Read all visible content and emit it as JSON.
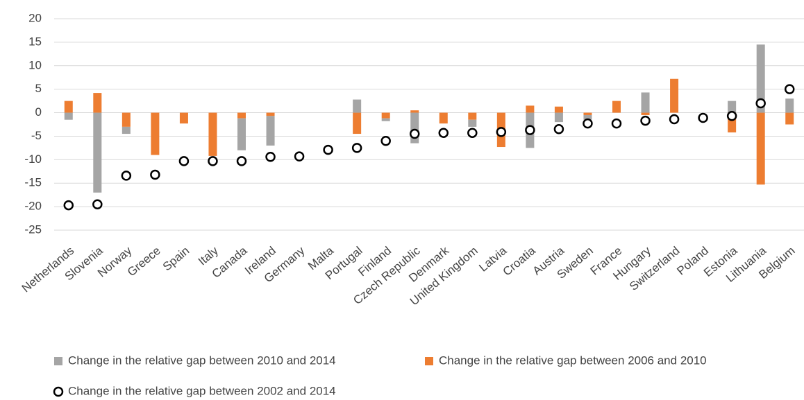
{
  "chart_data": {
    "type": "bar",
    "categories": [
      "Netherlands",
      "Slovenia",
      "Norway",
      "Greece",
      "Spain",
      "Italy",
      "Canada",
      "Ireland",
      "Germany",
      "Malta",
      "Portugal",
      "Finland",
      "Czech Republic",
      "Denmark",
      "United Kingdom",
      "Latvia",
      "Croatia",
      "Austria",
      "Sweden",
      "France",
      "Hungary",
      "Switzerland",
      "Poland",
      "Estonia",
      "Lithuania",
      "Belgium"
    ],
    "series": [
      {
        "name": "Change in the relative gap between 2010 and 2014",
        "color": "#a5a5a5",
        "kind": "bar",
        "values": [
          -1.5,
          -17,
          -1.5,
          0,
          0,
          0,
          -6.8,
          -6.3,
          0,
          0,
          2.8,
          -0.6,
          -6.5,
          0,
          -1.5,
          0,
          -7.5,
          -2,
          -1,
          0,
          4.3,
          0,
          0,
          2.5,
          14.5,
          3
        ]
      },
      {
        "name": "Change in the relative gap between 2006 and 2010",
        "color": "#ed7d31",
        "kind": "bar",
        "values": [
          2.5,
          4.2,
          -3,
          -9,
          -2.3,
          -9.2,
          -1.2,
          -0.7,
          0,
          0,
          -4.5,
          -1.2,
          0.5,
          -2.3,
          -1.5,
          -7.3,
          1.5,
          1.3,
          -0.5,
          2.5,
          -0.5,
          7.2,
          0,
          -4.2,
          -15.3,
          -2.5
        ]
      },
      {
        "name": "Change in the relative gap between 2002 and 2014",
        "color": "#000000",
        "kind": "circle",
        "values": [
          -19.7,
          -19.5,
          -13.4,
          -13.2,
          -10.3,
          -10.3,
          -10.3,
          -9.4,
          -9.3,
          -7.9,
          -7.5,
          -6,
          -4.5,
          -4.3,
          -4.3,
          -4.1,
          -3.7,
          -3.5,
          -2.3,
          -2.3,
          -1.7,
          -1.4,
          -1.1,
          -0.7,
          2,
          5
        ]
      }
    ],
    "ylim": [
      -25,
      20
    ],
    "yticks": [
      -25,
      -20,
      -15,
      -10,
      -5,
      0,
      5,
      10,
      15,
      20
    ],
    "grid": true
  }
}
